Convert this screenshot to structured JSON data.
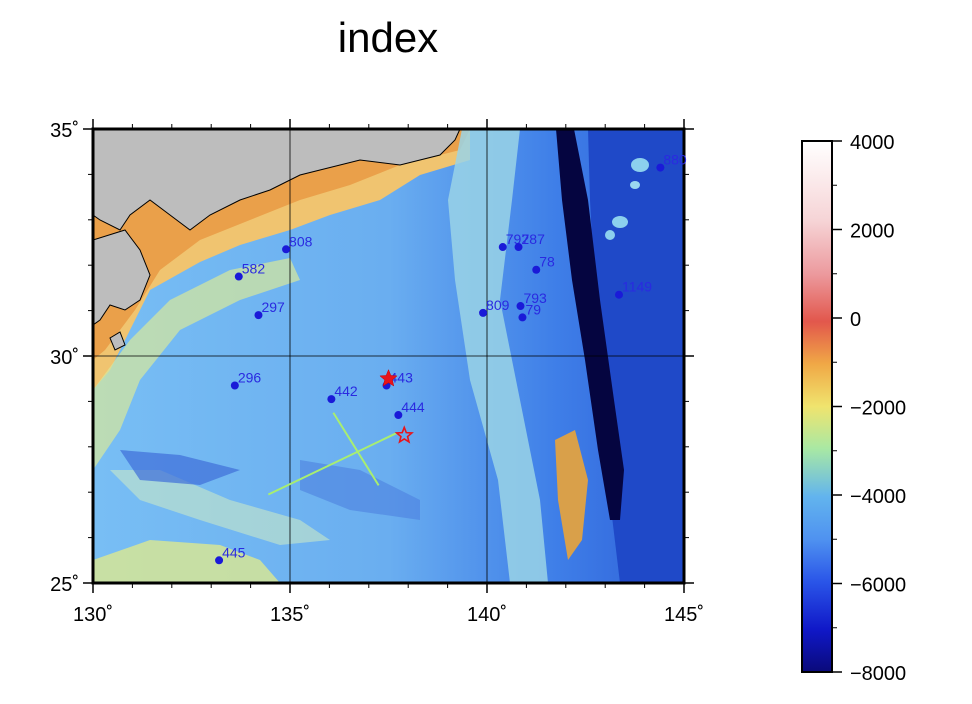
{
  "title": "index",
  "map": {
    "lon_range": [
      130,
      145
    ],
    "lat_range": [
      25,
      35
    ],
    "lon_ticks": [
      {
        "value": 130,
        "label": "130˚"
      },
      {
        "value": 135,
        "label": "135˚"
      },
      {
        "value": 140,
        "label": "140˚"
      },
      {
        "value": 145,
        "label": "145˚"
      }
    ],
    "lat_ticks": [
      {
        "value": 25,
        "label": "25˚"
      },
      {
        "value": 30,
        "label": "30˚"
      },
      {
        "value": 35,
        "label": "35˚"
      }
    ],
    "grid_lines": true,
    "land_color": "#bdbdbd"
  },
  "stations": [
    {
      "id": "808",
      "lon": 134.9,
      "lat": 32.35
    },
    {
      "id": "582",
      "lon": 133.7,
      "lat": 31.75
    },
    {
      "id": "297",
      "lon": 134.2,
      "lat": 30.9
    },
    {
      "id": "296",
      "lon": 133.6,
      "lat": 29.35
    },
    {
      "id": "442",
      "lon": 136.05,
      "lat": 29.05
    },
    {
      "id": "443",
      "lon": 137.45,
      "lat": 29.35
    },
    {
      "id": "444",
      "lon": 137.75,
      "lat": 28.7
    },
    {
      "id": "445",
      "lon": 133.2,
      "lat": 25.5
    },
    {
      "id": "792",
      "lon": 140.4,
      "lat": 32.4
    },
    {
      "id": "787",
      "lon": 140.8,
      "lat": 32.4
    },
    {
      "id": "78",
      "lon": 141.25,
      "lat": 31.9
    },
    {
      "id": "809",
      "lon": 139.9,
      "lat": 30.95
    },
    {
      "id": "793",
      "lon": 140.85,
      "lat": 31.1
    },
    {
      "id": "79",
      "lon": 140.9,
      "lat": 30.85
    },
    {
      "id": "1149",
      "lon": 143.35,
      "lat": 31.35
    },
    {
      "id": "880",
      "lon": 144.4,
      "lat": 34.15
    }
  ],
  "events": [
    {
      "lon": 137.5,
      "lat": 29.5,
      "style": "filled"
    },
    {
      "lon": 137.9,
      "lat": 28.25,
      "style": "outline"
    }
  ],
  "profiles": [
    {
      "from": [
        134.45,
        26.95
      ],
      "to": [
        137.7,
        28.3
      ]
    },
    {
      "from": [
        136.1,
        28.75
      ],
      "to": [
        137.25,
        27.15
      ]
    }
  ],
  "colorbar": {
    "min": -8000,
    "max": 4000,
    "tick_labels": [
      "4000",
      "2000",
      "0",
      "−2000",
      "−4000",
      "−6000",
      "−8000"
    ],
    "tick_values": [
      4000,
      2000,
      0,
      -2000,
      -4000,
      -6000,
      -8000
    ]
  }
}
